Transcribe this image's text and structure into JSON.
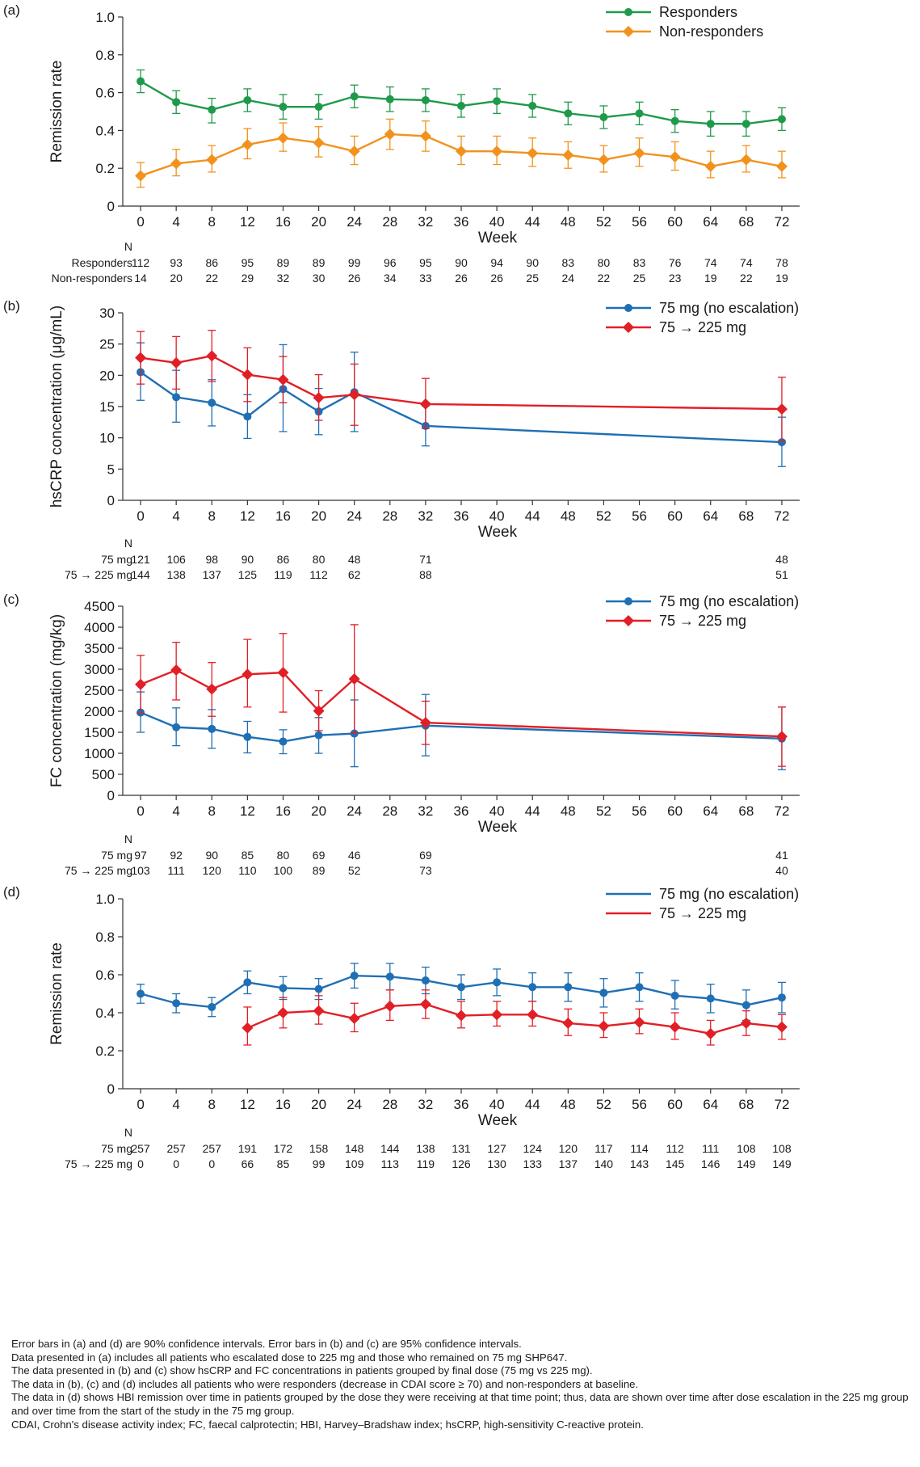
{
  "panels": [
    {
      "id": "a",
      "panel_label": "(a)",
      "ylabel": "Remission rate",
      "xlabel": "Week",
      "n_header": "N",
      "n_rows": [
        {
          "label": "Responders",
          "values": [
            "112",
            "93",
            "86",
            "95",
            "89",
            "89",
            "99",
            "96",
            "95",
            "90",
            "94",
            "90",
            "83",
            "80",
            "83",
            "76",
            "74",
            "74",
            "78"
          ]
        },
        {
          "label": "Non-responders",
          "values": [
            "14",
            "20",
            "22",
            "29",
            "32",
            "30",
            "26",
            "34",
            "33",
            "26",
            "26",
            "25",
            "24",
            "22",
            "25",
            "23",
            "19",
            "22",
            "19"
          ]
        }
      ]
    },
    {
      "id": "b",
      "panel_label": "(b)",
      "ylabel": "hsCRP concentration (μg/mL)",
      "xlabel": "Week",
      "n_header": "N",
      "n_rows": [
        {
          "label": "75 mg",
          "values": [
            "121",
            "106",
            "98",
            "90",
            "86",
            "80",
            "48",
            "",
            "71",
            "",
            "",
            "",
            "",
            "",
            "",
            "",
            "",
            "",
            "48"
          ]
        },
        {
          "label": "75 → 225 mg",
          "values": [
            "144",
            "138",
            "137",
            "125",
            "119",
            "112",
            "62",
            "",
            "88",
            "",
            "",
            "",
            "",
            "",
            "",
            "",
            "",
            "",
            "51"
          ]
        }
      ]
    },
    {
      "id": "c",
      "panel_label": "(c)",
      "ylabel": "FC concentration (mg/kg)",
      "xlabel": "Week",
      "n_header": "N",
      "n_rows": [
        {
          "label": "75 mg",
          "values": [
            "97",
            "92",
            "90",
            "85",
            "80",
            "69",
            "46",
            "",
            "69",
            "",
            "",
            "",
            "",
            "",
            "",
            "",
            "",
            "",
            "41"
          ]
        },
        {
          "label": "75 → 225 mg",
          "values": [
            "103",
            "111",
            "120",
            "110",
            "100",
            "89",
            "52",
            "",
            "73",
            "",
            "",
            "",
            "",
            "",
            "",
            "",
            "",
            "",
            "40"
          ]
        }
      ]
    },
    {
      "id": "d",
      "panel_label": "(d)",
      "ylabel": "Remission rate",
      "xlabel": "Week",
      "n_header": "N",
      "n_rows": [
        {
          "label": "75 mg",
          "values": [
            "257",
            "257",
            "257",
            "191",
            "172",
            "158",
            "148",
            "144",
            "138",
            "131",
            "127",
            "124",
            "120",
            "117",
            "114",
            "112",
            "111",
            "108",
            "108"
          ]
        },
        {
          "label": "75 → 225 mg",
          "values": [
            "0",
            "0",
            "0",
            "66",
            "85",
            "99",
            "109",
            "113",
            "119",
            "126",
            "130",
            "133",
            "137",
            "140",
            "143",
            "145",
            "146",
            "149",
            "149"
          ]
        }
      ]
    }
  ],
  "chart_data": [
    {
      "type": "line",
      "panel": "a",
      "x": [
        0,
        4,
        8,
        12,
        16,
        20,
        24,
        28,
        32,
        36,
        40,
        44,
        48,
        52,
        56,
        60,
        64,
        68,
        72
      ],
      "xticks": [
        0,
        4,
        8,
        12,
        16,
        20,
        24,
        28,
        32,
        36,
        40,
        44,
        48,
        52,
        56,
        60,
        64,
        68,
        72
      ],
      "xlim": [
        -2,
        74
      ],
      "ylim": [
        0,
        1.0
      ],
      "yticks": [
        0,
        0.2,
        0.4,
        0.6,
        0.8,
        1.0
      ],
      "ytick_labels": [
        "0",
        "0.2",
        "0.4",
        "0.6",
        "0.8",
        "1.0"
      ],
      "xlabel": "Week",
      "ylabel": "Remission rate",
      "legend_position": "top-right",
      "series": [
        {
          "name": "Responders",
          "color": "#1f9a4b",
          "marker": "circle",
          "values": [
            0.66,
            0.55,
            0.51,
            0.56,
            0.525,
            0.525,
            0.58,
            0.565,
            0.56,
            0.53,
            0.555,
            0.53,
            0.49,
            0.47,
            0.49,
            0.45,
            0.435,
            0.435,
            0.46
          ],
          "lower": [
            0.6,
            0.49,
            0.44,
            0.5,
            0.46,
            0.46,
            0.52,
            0.5,
            0.5,
            0.47,
            0.49,
            0.47,
            0.43,
            0.41,
            0.43,
            0.39,
            0.37,
            0.37,
            0.4
          ],
          "upper": [
            0.72,
            0.61,
            0.57,
            0.62,
            0.59,
            0.59,
            0.64,
            0.63,
            0.62,
            0.59,
            0.62,
            0.59,
            0.55,
            0.53,
            0.55,
            0.51,
            0.5,
            0.5,
            0.52
          ]
        },
        {
          "name": "Non-responders",
          "color": "#f2921d",
          "marker": "diamond",
          "values": [
            0.16,
            0.225,
            0.245,
            0.325,
            0.36,
            0.335,
            0.29,
            0.38,
            0.37,
            0.29,
            0.29,
            0.28,
            0.27,
            0.245,
            0.28,
            0.26,
            0.21,
            0.245,
            0.21
          ],
          "lower": [
            0.1,
            0.16,
            0.18,
            0.25,
            0.29,
            0.26,
            0.22,
            0.3,
            0.29,
            0.22,
            0.22,
            0.21,
            0.2,
            0.18,
            0.21,
            0.19,
            0.15,
            0.18,
            0.15
          ],
          "upper": [
            0.23,
            0.3,
            0.32,
            0.41,
            0.44,
            0.42,
            0.37,
            0.46,
            0.45,
            0.37,
            0.37,
            0.36,
            0.34,
            0.32,
            0.36,
            0.34,
            0.29,
            0.32,
            0.29
          ]
        }
      ]
    },
    {
      "type": "line",
      "panel": "b",
      "x": [
        0,
        4,
        8,
        12,
        16,
        20,
        24,
        32,
        72
      ],
      "xticks": [
        0,
        4,
        8,
        12,
        16,
        20,
        24,
        28,
        32,
        36,
        40,
        44,
        48,
        52,
        56,
        60,
        64,
        68,
        72
      ],
      "xlim": [
        -2,
        74
      ],
      "ylim": [
        0,
        30
      ],
      "yticks": [
        0,
        5,
        10,
        15,
        20,
        25,
        30
      ],
      "ytick_labels": [
        "0",
        "5",
        "10",
        "15",
        "20",
        "25",
        "30"
      ],
      "xlabel": "Week",
      "ylabel": "hsCRP concentration (μg/mL)",
      "legend_position": "top-right",
      "series": [
        {
          "name": "75 mg (no escalation)",
          "color": "#1f6fb4",
          "marker": "circle",
          "values": [
            20.5,
            16.5,
            15.6,
            13.4,
            17.8,
            14.2,
            17.3,
            11.9,
            9.3
          ],
          "lower": [
            16.0,
            12.5,
            11.9,
            9.9,
            11.0,
            10.5,
            11.0,
            8.7,
            5.4
          ],
          "upper": [
            25.2,
            20.8,
            19.3,
            16.9,
            24.9,
            17.9,
            23.7,
            15.1,
            13.3
          ]
        },
        {
          "name": "75 → 225 mg",
          "color": "#e11f26",
          "marker": "diamond",
          "values": [
            22.8,
            22.0,
            23.1,
            20.1,
            19.3,
            16.4,
            16.9,
            15.4,
            14.6
          ],
          "lower": [
            18.6,
            17.8,
            19.0,
            15.8,
            15.6,
            12.8,
            12.0,
            11.5,
            9.5
          ],
          "upper": [
            27.0,
            26.2,
            27.2,
            24.4,
            23.0,
            20.1,
            21.8,
            19.5,
            19.7
          ]
        }
      ]
    },
    {
      "type": "line",
      "panel": "c",
      "x": [
        0,
        4,
        8,
        12,
        16,
        20,
        24,
        32,
        72
      ],
      "xticks": [
        0,
        4,
        8,
        12,
        16,
        20,
        24,
        28,
        32,
        36,
        40,
        44,
        48,
        52,
        56,
        60,
        64,
        68,
        72
      ],
      "xlim": [
        -2,
        74
      ],
      "ylim": [
        0,
        4500
      ],
      "yticks": [
        0,
        500,
        1000,
        1500,
        2000,
        2500,
        3000,
        3500,
        4000,
        4500
      ],
      "ytick_labels": [
        "0",
        "500",
        "1000",
        "1500",
        "2000",
        "2500",
        "3000",
        "3500",
        "4000",
        "4500"
      ],
      "xlabel": "Week",
      "ylabel": "FC concentration (mg/kg)",
      "legend_position": "top-right",
      "series": [
        {
          "name": "75 mg (no escalation)",
          "color": "#1f6fb4",
          "marker": "circle",
          "values": [
            1970,
            1620,
            1580,
            1390,
            1280,
            1430,
            1470,
            1660,
            1350
          ],
          "lower": [
            1500,
            1180,
            1120,
            1010,
            990,
            1000,
            680,
            940,
            610
          ],
          "upper": [
            2460,
            2080,
            2040,
            1760,
            1560,
            1850,
            2270,
            2400,
            2100
          ]
        },
        {
          "name": "75 → 225 mg",
          "color": "#e11f26",
          "marker": "diamond",
          "values": [
            2640,
            2980,
            2530,
            2880,
            2920,
            2010,
            2770,
            1730,
            1400
          ],
          "lower": [
            1950,
            2270,
            1880,
            2100,
            1980,
            1540,
            1480,
            1210,
            690
          ],
          "upper": [
            3330,
            3640,
            3160,
            3710,
            3850,
            2490,
            4060,
            2240,
            2100
          ]
        }
      ]
    },
    {
      "type": "line",
      "panel": "d",
      "x": [
        0,
        4,
        8,
        12,
        16,
        20,
        24,
        28,
        32,
        36,
        40,
        44,
        48,
        52,
        56,
        60,
        64,
        68,
        72
      ],
      "xticks": [
        0,
        4,
        8,
        12,
        16,
        20,
        24,
        28,
        32,
        36,
        40,
        44,
        48,
        52,
        56,
        60,
        64,
        68,
        72
      ],
      "xlim": [
        -2,
        74
      ],
      "ylim": [
        0,
        1.0
      ],
      "yticks": [
        0,
        0.2,
        0.4,
        0.6,
        0.8,
        1.0
      ],
      "ytick_labels": [
        "0",
        "0.2",
        "0.4",
        "0.6",
        "0.8",
        "1.0"
      ],
      "xlabel": "Week",
      "ylabel": "Remission rate",
      "legend_position": "top-right",
      "series": [
        {
          "name": "75 mg (no escalation)",
          "color": "#1f6fb4",
          "marker": "circle",
          "values": [
            0.5,
            0.45,
            0.43,
            0.56,
            0.53,
            0.525,
            0.595,
            0.59,
            0.57,
            0.535,
            0.56,
            0.535,
            0.535,
            0.505,
            0.535,
            0.49,
            0.475,
            0.44,
            0.48
          ],
          "lower": [
            0.45,
            0.4,
            0.38,
            0.5,
            0.47,
            0.47,
            0.53,
            0.52,
            0.5,
            0.47,
            0.49,
            0.46,
            0.46,
            0.43,
            0.46,
            0.42,
            0.4,
            0.36,
            0.4
          ],
          "upper": [
            0.55,
            0.5,
            0.48,
            0.62,
            0.59,
            0.58,
            0.66,
            0.66,
            0.64,
            0.6,
            0.63,
            0.61,
            0.61,
            0.58,
            0.61,
            0.57,
            0.55,
            0.52,
            0.56
          ]
        },
        {
          "name": "75 → 225 mg",
          "color": "#e11f26",
          "marker": "diamond",
          "x": [
            12,
            16,
            20,
            24,
            28,
            32,
            36,
            40,
            44,
            48,
            52,
            56,
            60,
            64,
            68,
            72
          ],
          "values": [
            0.32,
            0.4,
            0.41,
            0.37,
            0.435,
            0.445,
            0.385,
            0.39,
            0.39,
            0.345,
            0.33,
            0.35,
            0.325,
            0.29,
            0.345,
            0.325
          ],
          "lower": [
            0.23,
            0.32,
            0.34,
            0.3,
            0.36,
            0.37,
            0.32,
            0.33,
            0.33,
            0.28,
            0.27,
            0.29,
            0.26,
            0.23,
            0.28,
            0.26
          ],
          "upper": [
            0.43,
            0.48,
            0.49,
            0.45,
            0.52,
            0.52,
            0.46,
            0.46,
            0.46,
            0.42,
            0.4,
            0.42,
            0.4,
            0.36,
            0.41,
            0.39
          ]
        }
      ]
    }
  ],
  "footnotes": [
    "Error bars in (a) and (d) are 90% confidence intervals. Error bars in (b) and (c) are 95% confidence intervals.",
    "Data presented in (a) includes all patients who escalated dose to 225 mg and those who remained on 75 mg SHP647.",
    "The data presented in (b) and (c) show hsCRP and FC concentrations in patients grouped by final dose (75 mg vs 225 mg).",
    "The data in (b), (c) and (d) includes all patients who were responders (decrease in CDAI score ≥ 70) and non-responders at baseline.",
    "The data in (d) shows HBI remission over time in patients grouped by the dose they were receiving at that time point; thus, data are shown over time after dose escalation in the 225 mg group and over time from the start of the study in the 75 mg group.",
    "CDAI, Crohn's disease activity index; FC, faecal calprotectin; HBI, Harvey–Bradshaw index; hsCRP, high-sensitivity C-reactive protein."
  ]
}
